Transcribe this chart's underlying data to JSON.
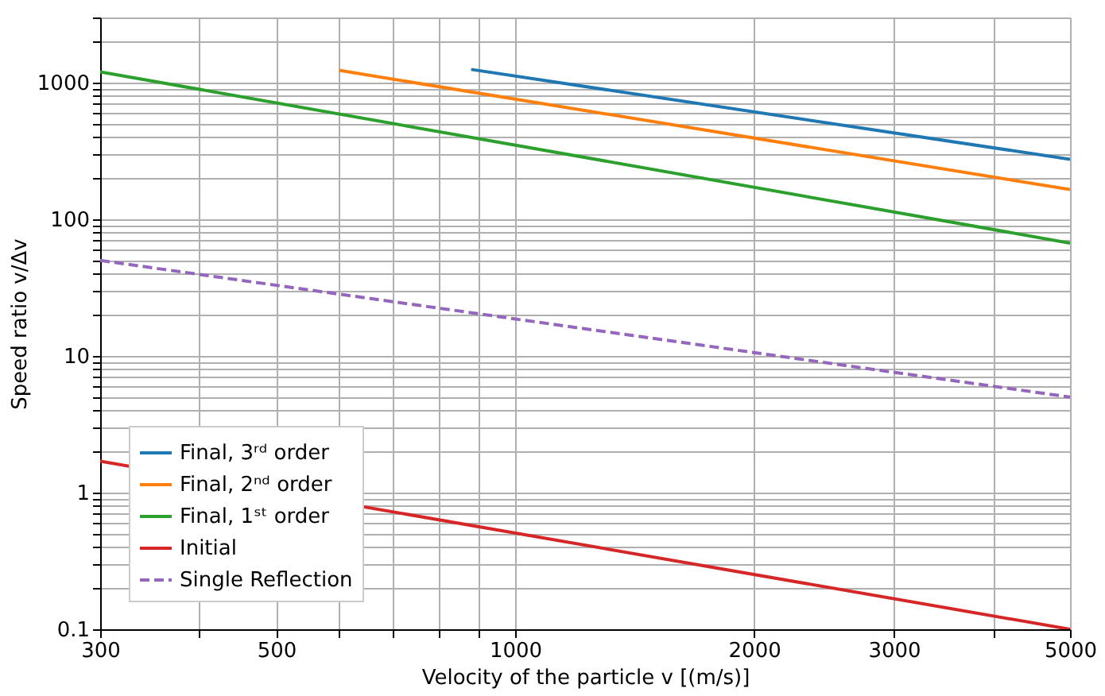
{
  "chart_data": {
    "type": "line",
    "xlabel": "Velocity of the particle v [(m/s)]",
    "ylabel": "Speed ratio v/Δv",
    "log": "xy",
    "grid": true,
    "legend": "bottom left",
    "xlim": [
      300,
      5000
    ],
    "xticks": [
      300,
      {
        "value": 400,
        "label": null
      },
      500,
      {
        "value": 600,
        "label": null
      },
      {
        "value": 700,
        "label": null
      },
      {
        "value": 800,
        "label": null
      },
      {
        "value": 900,
        "label": null
      },
      1000,
      2000,
      3000,
      {
        "value": 4000,
        "label": null
      },
      5000
    ],
    "ylim": [
      0.1,
      3000
    ],
    "yticks": [
      0.1,
      {
        "value": 0.2,
        "label": null
      },
      {
        "value": 0.3,
        "label": null
      },
      {
        "value": 0.4,
        "label": null
      },
      {
        "value": 0.5,
        "label": null
      },
      {
        "value": 0.6,
        "label": null
      },
      {
        "value": 0.7,
        "label": null
      },
      {
        "value": 0.8,
        "label": null
      },
      {
        "value": 0.9,
        "label": null
      },
      1,
      {
        "value": 2,
        "label": null
      },
      {
        "value": 3,
        "label": null
      },
      {
        "value": 4,
        "label": null
      },
      {
        "value": 5,
        "label": null
      },
      {
        "value": 6,
        "label": null
      },
      {
        "value": 7,
        "label": null
      },
      {
        "value": 8,
        "label": null
      },
      {
        "value": 9,
        "label": null
      },
      10,
      {
        "value": 20,
        "label": null
      },
      {
        "value": 30,
        "label": null
      },
      {
        "value": 40,
        "label": null
      },
      {
        "value": 50,
        "label": null
      },
      {
        "value": 60,
        "label": null
      },
      {
        "value": 70,
        "label": null
      },
      {
        "value": 80,
        "label": null
      },
      {
        "value": 90,
        "label": null
      },
      100,
      {
        "value": 200,
        "label": null
      },
      {
        "value": 300,
        "label": null
      },
      {
        "value": 400,
        "label": null
      },
      {
        "value": 500,
        "label": null
      },
      {
        "value": 600,
        "label": null
      },
      {
        "value": 700,
        "label": null
      },
      {
        "value": 800,
        "label": null
      },
      {
        "value": 900,
        "label": null
      },
      1000,
      {
        "value": 2000,
        "label": null
      },
      {
        "value": 3000,
        "label": null
      }
    ],
    "series": [
      {
        "name": "Final, 3ʳᵈ order",
        "color": "#1f77b4",
        "line_style": "solid",
        "x": [
          880,
          5000
        ],
        "values": [
          1250,
          275
        ]
      },
      {
        "name": "Final, 2ⁿᵈ order",
        "color": "#ff7f0e",
        "line_style": "solid",
        "x": [
          600,
          5000
        ],
        "values": [
          1230,
          165
        ]
      },
      {
        "name": "Final, 1ˢᵗ order",
        "color": "#2ca02c",
        "line_style": "solid",
        "x": [
          300,
          5000
        ],
        "values": [
          1200,
          67
        ]
      },
      {
        "name": "Initial",
        "color": "#d62728",
        "line_style": "solid",
        "x": [
          300,
          5000
        ],
        "values": [
          1.7,
          0.1
        ]
      },
      {
        "name": "Single Reflection",
        "color": "#9467bd",
        "line_style": "dashed",
        "x": [
          300,
          5000
        ],
        "values": [
          50,
          5
        ]
      }
    ]
  }
}
